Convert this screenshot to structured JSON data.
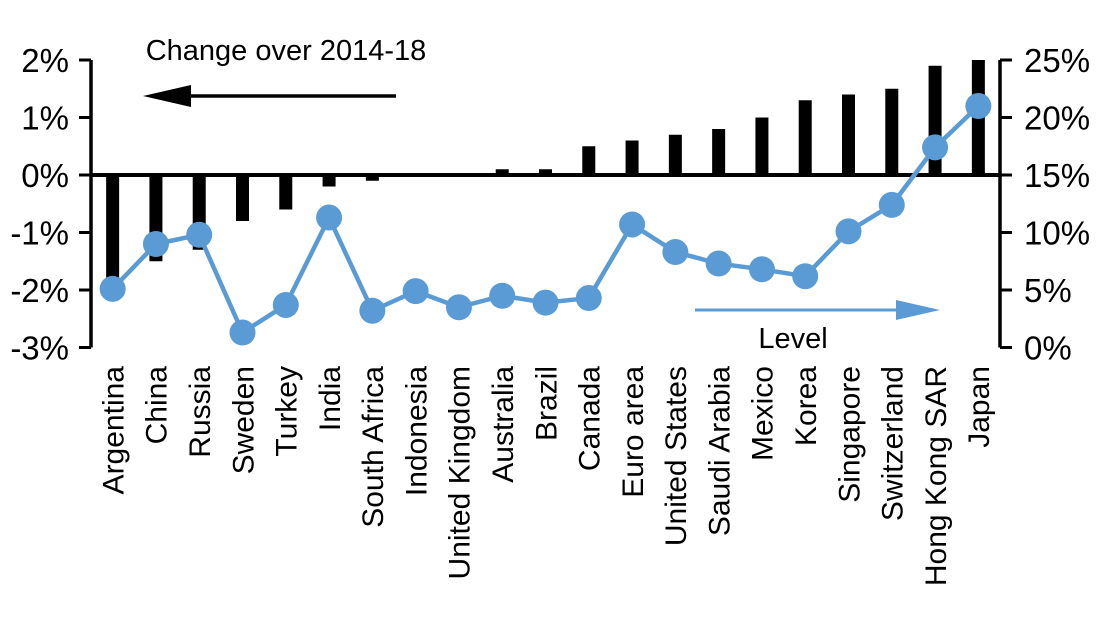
{
  "chart_data": {
    "type": "combo-bar-line",
    "title": "",
    "categories": [
      "Argentina",
      "China",
      "Russia",
      "Sweden",
      "Turkey",
      "India",
      "South Africa",
      "Indonesia",
      "United Kingdom",
      "Australia",
      "Brazil",
      "Canada",
      "Euro area",
      "United States",
      "Saudi Arabia",
      "Mexico",
      "Korea",
      "Singapore",
      "Switzerland",
      "Hong Kong SAR",
      "Japan"
    ],
    "series": [
      {
        "name": "Change over 2014-18",
        "type": "bar",
        "axis": "left",
        "color": "#000000",
        "values": [
          -1.8,
          -1.5,
          -1.3,
          -0.8,
          -0.6,
          -0.2,
          -0.1,
          0.0,
          0.0,
          0.1,
          0.1,
          0.5,
          0.6,
          0.7,
          0.8,
          1.0,
          1.3,
          1.4,
          1.5,
          1.9,
          2.0
        ]
      },
      {
        "name": "Level",
        "type": "line",
        "axis": "right",
        "color": "#5B9BD5",
        "values": [
          5.1,
          9.0,
          9.8,
          1.3,
          3.7,
          11.3,
          3.2,
          4.9,
          3.5,
          4.5,
          3.9,
          4.3,
          10.7,
          8.3,
          7.3,
          6.8,
          6.2,
          10.1,
          12.4,
          17.4,
          21.0
        ]
      }
    ],
    "left_axis": {
      "tick_labels": [
        "2%",
        "1%",
        "0%",
        "-1%",
        "-2%",
        "-3%"
      ],
      "tick_values": [
        2,
        1,
        0,
        -1,
        -2,
        -3
      ],
      "range": [
        -3,
        2
      ]
    },
    "right_axis": {
      "tick_labels": [
        "25%",
        "20%",
        "15%",
        "10%",
        "5%",
        "0%"
      ],
      "tick_values": [
        25,
        20,
        15,
        10,
        5,
        0
      ],
      "range": [
        0,
        25
      ]
    },
    "annotations": {
      "bar_series_label": "Change over 2014-18",
      "bar_series_arrow_direction": "left",
      "line_series_label": "Level",
      "line_series_arrow_direction": "right"
    },
    "grid": false,
    "zero_line_left_equals_right": "0% left aligns with 15% right"
  },
  "colors": {
    "bar": "#000000",
    "line": "#5B9BD5",
    "text": "#000000",
    "background": "#FFFFFF"
  }
}
